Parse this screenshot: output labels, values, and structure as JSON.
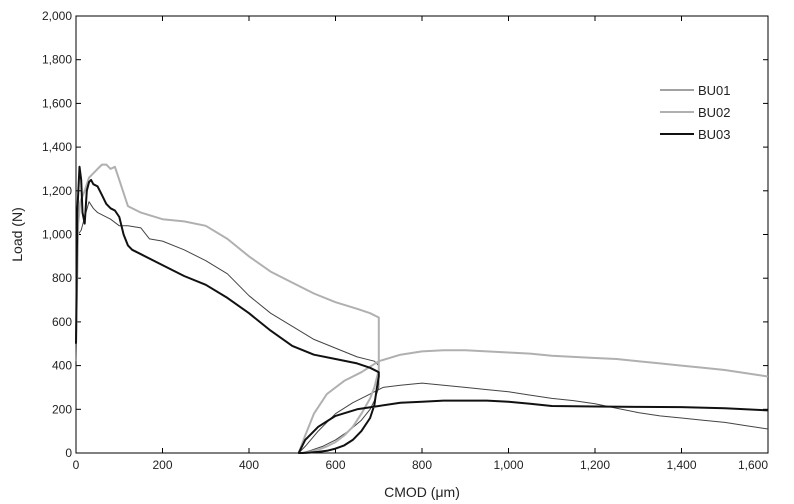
{
  "chart_data": {
    "type": "line",
    "title": "",
    "xlabel": "CMOD (μm)",
    "ylabel": "Load (N)",
    "xlim": [
      0,
      1600
    ],
    "ylim": [
      0,
      2000
    ],
    "xticks": [
      0,
      200,
      400,
      600,
      800,
      1000,
      1200,
      1400,
      1600
    ],
    "yticks": [
      0,
      200,
      400,
      600,
      800,
      1000,
      1200,
      1400,
      1600,
      1800,
      2000
    ],
    "xtick_labels": [
      "0",
      "200",
      "400",
      "600",
      "800",
      "1,000",
      "1,200",
      "1,400",
      "1,600"
    ],
    "ytick_labels": [
      "0",
      "200",
      "400",
      "600",
      "800",
      "1,000",
      "1,200",
      "1,400",
      "1,600",
      "1,800",
      "2,000"
    ],
    "grid": false,
    "legend_position": "top-right",
    "series": [
      {
        "name": "BU01",
        "color": "#444444",
        "x": [
          0,
          5,
          12,
          20,
          30,
          40,
          50,
          60,
          80,
          100,
          120,
          150,
          170,
          200,
          250,
          300,
          350,
          400,
          450,
          500,
          550,
          600,
          650,
          690,
          700,
          700,
          690,
          680,
          660,
          630,
          600,
          570,
          540,
          520,
          515,
          530,
          560,
          600,
          640,
          670,
          690,
          700,
          710,
          750,
          800,
          850,
          900,
          950,
          1000,
          1050,
          1100,
          1150,
          1200,
          1250,
          1300,
          1350,
          1400,
          1450,
          1500,
          1550,
          1600
        ],
        "y": [
          420,
          1000,
          1020,
          1080,
          1150,
          1120,
          1100,
          1090,
          1070,
          1040,
          1040,
          1030,
          980,
          970,
          930,
          880,
          820,
          720,
          640,
          580,
          520,
          480,
          440,
          420,
          400,
          300,
          240,
          200,
          150,
          100,
          60,
          30,
          10,
          0,
          0,
          30,
          100,
          180,
          230,
          260,
          280,
          290,
          300,
          310,
          320,
          310,
          300,
          290,
          280,
          265,
          250,
          240,
          225,
          205,
          185,
          170,
          160,
          150,
          140,
          125,
          110
        ]
      },
      {
        "name": "BU02",
        "color": "#b0b0b0",
        "x": [
          0,
          5,
          10,
          20,
          30,
          40,
          50,
          60,
          70,
          80,
          90,
          100,
          120,
          150,
          200,
          250,
          300,
          350,
          400,
          450,
          500,
          550,
          600,
          650,
          680,
          700,
          700,
          690,
          680,
          660,
          640,
          620,
          600,
          580,
          560,
          540,
          530,
          520,
          515,
          530,
          550,
          580,
          620,
          660,
          700,
          750,
          800,
          850,
          900,
          950,
          1000,
          1050,
          1100,
          1150,
          1200,
          1250,
          1300,
          1350,
          1400,
          1450,
          1500,
          1550,
          1600
        ],
        "y": [
          500,
          1050,
          1150,
          1200,
          1260,
          1280,
          1300,
          1320,
          1320,
          1300,
          1310,
          1250,
          1130,
          1100,
          1070,
          1060,
          1040,
          980,
          900,
          830,
          780,
          730,
          690,
          660,
          640,
          620,
          380,
          300,
          250,
          180,
          120,
          80,
          50,
          30,
          15,
          5,
          2,
          0,
          0,
          80,
          180,
          270,
          330,
          370,
          420,
          450,
          465,
          470,
          470,
          465,
          460,
          455,
          445,
          440,
          435,
          430,
          420,
          410,
          400,
          390,
          380,
          365,
          350
        ]
      },
      {
        "name": "BU03",
        "color": "#111111",
        "x": [
          0,
          3,
          8,
          12,
          15,
          20,
          25,
          30,
          35,
          40,
          50,
          60,
          70,
          80,
          90,
          100,
          110,
          120,
          130,
          150,
          200,
          250,
          300,
          350,
          400,
          450,
          500,
          550,
          600,
          650,
          680,
          700,
          700,
          695,
          690,
          680,
          660,
          640,
          620,
          600,
          580,
          560,
          540,
          525,
          515,
          530,
          560,
          600,
          650,
          700,
          750,
          800,
          850,
          900,
          950,
          1000,
          1050,
          1100,
          1200,
          1300,
          1400,
          1500,
          1600
        ],
        "y": [
          500,
          1100,
          1310,
          1250,
          1100,
          1050,
          1200,
          1240,
          1250,
          1230,
          1220,
          1180,
          1140,
          1120,
          1110,
          1080,
          1000,
          950,
          930,
          910,
          860,
          810,
          770,
          710,
          640,
          560,
          490,
          450,
          430,
          410,
          390,
          370,
          350,
          290,
          220,
          160,
          100,
          60,
          35,
          20,
          10,
          5,
          2,
          0,
          0,
          60,
          120,
          170,
          200,
          215,
          230,
          235,
          240,
          240,
          240,
          235,
          225,
          215,
          213,
          211,
          210,
          205,
          195
        ]
      }
    ]
  }
}
